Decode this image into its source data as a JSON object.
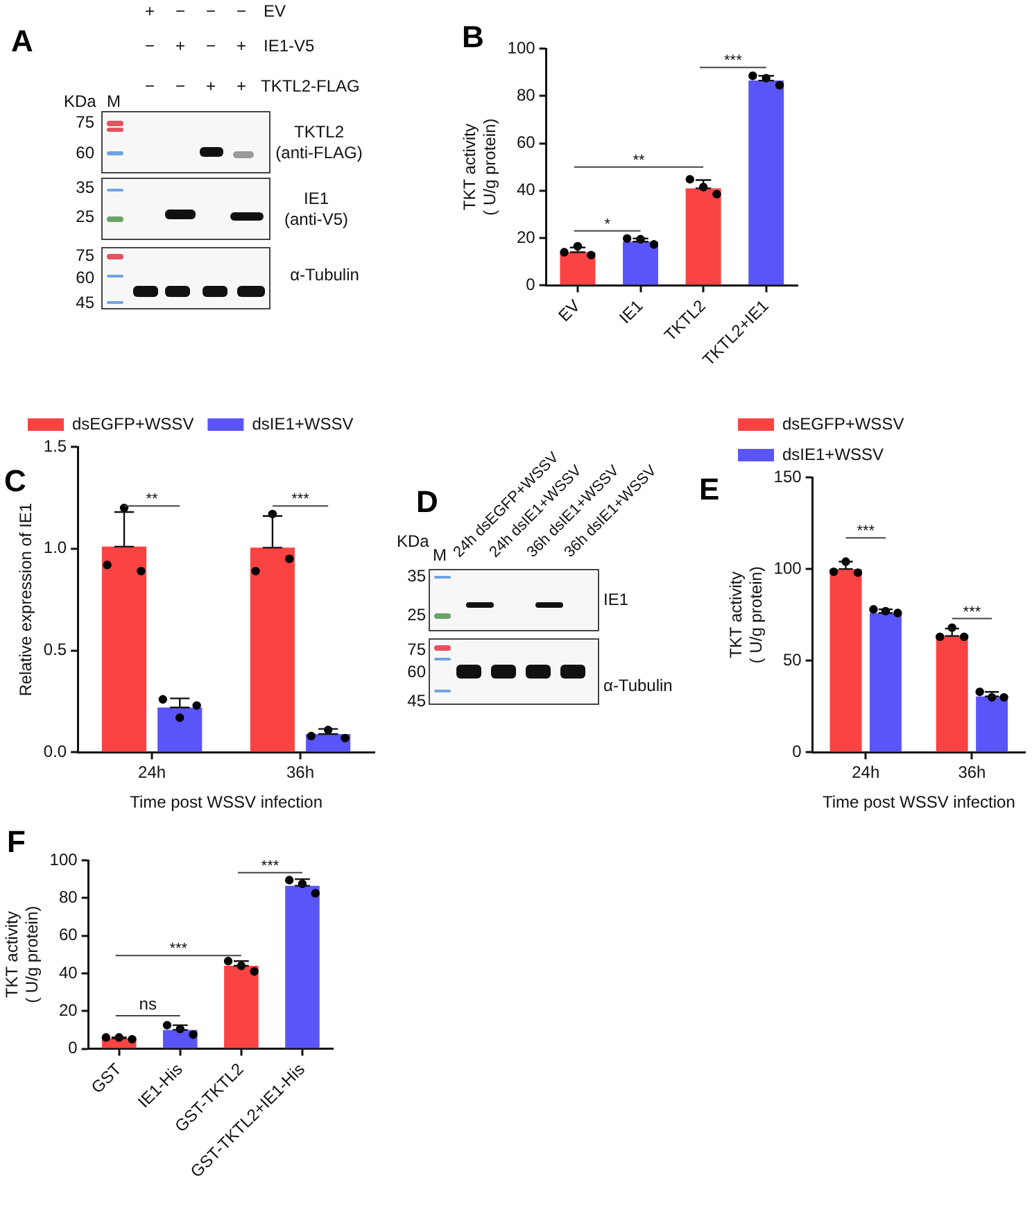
{
  "chart_data": [
    {
      "type": "other",
      "title": "A",
      "annotations": [
        "+",
        "−",
        "−",
        "−",
        "−",
        "+",
        "−",
        "+",
        "−",
        "−",
        "+",
        "+",
        "EV",
        "IE1-V5",
        "TKTL2-FLAG",
        "KDa",
        "M",
        "75",
        "60",
        "35",
        "25",
        "75",
        "60",
        "45",
        "TKTL2",
        "(anti-FLAG)",
        "IE1",
        "(anti-V5)",
        "α-Tubulin"
      ]
    },
    {
      "type": "bar",
      "title": "B",
      "ylabel": "TKT activity\n( U/g protein)",
      "categories": [
        "EV",
        "IE1",
        "TKTL2",
        "TKTL2+IE1"
      ],
      "series": [
        {
          "type": "bar",
          "colors": [
            "#fa4343",
            "#5a55f8",
            "#fa4343",
            "#5a55f8"
          ],
          "values": [
            14,
            18.5,
            41,
            86.5
          ],
          "errors": [
            [
              14,
              16
            ],
            [
              18.5,
              19.8
            ],
            [
              41,
              44.5
            ],
            [
              86.5,
              88.5
            ]
          ]
        },
        {
          "type": "scatter",
          "color": "#000000",
          "x": [
            "EV",
            "EV",
            "EV",
            "IE1",
            "IE1",
            "IE1",
            "TKTL2",
            "TKTL2",
            "TKTL2",
            "TKTL2+IE1",
            "TKTL2+IE1",
            "TKTL2+IE1"
          ],
          "values": [
            14,
            16.5,
            12.8,
            19.8,
            19.5,
            17.3,
            44.8,
            41.5,
            38.5,
            88.5,
            87.5,
            84.5
          ]
        }
      ],
      "ylim": [
        0,
        100
      ],
      "yticks": [
        0,
        20,
        40,
        60,
        80,
        100
      ],
      "marker": "circle",
      "annotations": [
        "*",
        "**",
        "***"
      ]
    },
    {
      "type": "bar",
      "title": "C",
      "ylabel": "Relative expression of IE1",
      "xlabel": "Time post WSSV infection",
      "categories": [
        "24h",
        "36h"
      ],
      "series": [
        {
          "type": "bar",
          "name": "dsEGFP+WSSV",
          "color": "#fa4343",
          "values": [
            1.01,
            1.005
          ],
          "errors": [
            [
              1.01,
              1.18
            ],
            [
              1.005,
              1.16
            ]
          ]
        },
        {
          "type": "bar",
          "name": "dsIE1+WSSV",
          "color": "#5a55f8",
          "values": [
            0.22,
            0.09
          ],
          "errors": [
            [
              0.22,
              0.265
            ],
            [
              0.09,
              0.115
            ]
          ]
        },
        {
          "type": "scatter",
          "color": "#000000",
          "x": [
            "24h",
            "24h",
            "24h",
            "36h",
            "36h",
            "36h"
          ],
          "values": [
            0.92,
            1.2,
            0.89,
            0.89,
            1.17,
            0.95
          ]
        },
        {
          "type": "scatter",
          "color": "#000000",
          "x": [
            "24h",
            "24h",
            "24h",
            "36h",
            "36h",
            "36h"
          ],
          "values": [
            0.26,
            0.17,
            0.23,
            0.08,
            0.11,
            0.07
          ]
        }
      ],
      "ylim": [
        0,
        1.5
      ],
      "yticks": [
        {
          "value": 0,
          "label": "0.0"
        },
        {
          "value": 0.5,
          "label": "0.5"
        },
        {
          "value": 1,
          "label": "1.0"
        },
        {
          "value": 1.5,
          "label": "1.5"
        }
      ],
      "marker": "circle",
      "legend": "top left",
      "annotations": [
        "**",
        "***"
      ]
    },
    {
      "type": "other",
      "title": "D",
      "annotations": [
        "KDa",
        "M",
        "24h dsEGFP+WSSV",
        "24h dsIE1+WSSV",
        "36h dsIE1+WSSV",
        "36h dsIE1+WSSV",
        "35",
        "25",
        "75",
        "60",
        "45",
        "IE1",
        "α-Tubulin"
      ]
    },
    {
      "type": "bar",
      "title": "E",
      "ylabel": "TKT activity\n( U/g protein)",
      "xlabel": "Time post WSSV infection",
      "categories": [
        "24h",
        "36h"
      ],
      "series": [
        {
          "type": "bar",
          "name": "dsEGFP+WSSV",
          "color": "#fa4343",
          "values": [
            100,
            63.5
          ],
          "errors": [
            [
              100,
              104
            ],
            [
              63.5,
              67.5
            ]
          ]
        },
        {
          "type": "bar",
          "name": "dsIE1+WSSV",
          "color": "#5a55f8",
          "values": [
            76,
            30.5
          ],
          "errors": [
            [
              76,
              78
            ],
            [
              30.5,
              33
            ]
          ]
        },
        {
          "type": "scatter",
          "color": "#000000",
          "x": [
            "24h",
            "24h",
            "24h",
            "36h",
            "36h",
            "36h"
          ],
          "values": [
            98.5,
            104,
            98,
            63,
            68,
            63
          ]
        },
        {
          "type": "scatter",
          "color": "#000000",
          "x": [
            "24h",
            "24h",
            "24h",
            "36h",
            "36h",
            "36h"
          ],
          "values": [
            78,
            77,
            76,
            33,
            30,
            30
          ]
        }
      ],
      "ylim": [
        0,
        150
      ],
      "yticks": [
        0,
        50,
        100,
        150
      ],
      "marker": "circle",
      "legend": "top left",
      "annotations": [
        "***",
        "***"
      ]
    },
    {
      "type": "bar",
      "title": "F",
      "ylabel": "TKT activity\n( U/g protein)",
      "categories": [
        "GST",
        "IE1-His",
        "GST-TKTL2",
        "GST-TKTL2+IE1-His"
      ],
      "series": [
        {
          "type": "bar",
          "colors": [
            "#fa4343",
            "#5a55f8",
            "#fa4343",
            "#5a55f8"
          ],
          "values": [
            5.5,
            10,
            44,
            86.5
          ],
          "errors": [
            [
              5.5,
              6
            ],
            [
              10,
              12.5
            ],
            [
              44,
              46.5
            ],
            [
              86.5,
              90
            ]
          ]
        },
        {
          "type": "scatter",
          "color": "#000000",
          "x": [
            "GST",
            "GST",
            "GST",
            "IE1-His",
            "IE1-His",
            "IE1-His",
            "GST-TKTL2",
            "GST-TKTL2",
            "GST-TKTL2",
            "GST-TKTL2+IE1-His",
            "GST-TKTL2+IE1-His",
            "GST-TKTL2+IE1-His"
          ],
          "values": [
            6,
            6,
            5,
            12.5,
            10.5,
            7.5,
            46.5,
            44,
            41,
            89.5,
            87.5,
            82.5
          ]
        }
      ],
      "ylim": [
        0,
        100
      ],
      "yticks": [
        0,
        20,
        40,
        60,
        80,
        100
      ],
      "marker": "circle",
      "annotations": [
        "ns",
        "***",
        "***"
      ]
    }
  ]
}
